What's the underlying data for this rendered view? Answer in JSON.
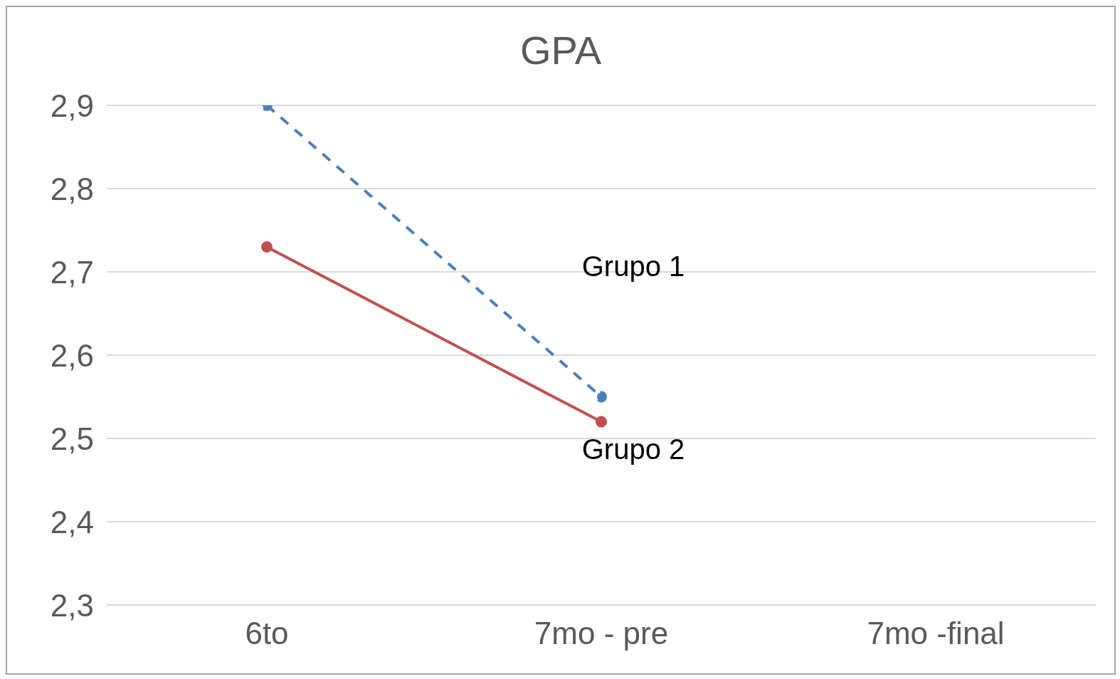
{
  "chart_data": {
    "type": "line",
    "title": "GPA",
    "categories": [
      "6to",
      "7mo - pre",
      "7mo -final"
    ],
    "series": [
      {
        "name": "Grupo 1",
        "color": "#4a7ebb",
        "values": [
          2.9,
          2.55,
          null
        ],
        "line_style": "dashed"
      },
      {
        "name": "Grupo 2",
        "color": "#c0504d",
        "values": [
          2.73,
          2.52,
          null
        ],
        "line_style": "solid"
      }
    ],
    "ylim": [
      2.3,
      2.9
    ],
    "yticks": [
      {
        "value": 2.3,
        "label": "2,3"
      },
      {
        "value": 2.4,
        "label": "2,4"
      },
      {
        "value": 2.5,
        "label": "2,5"
      },
      {
        "value": 2.6,
        "label": "2,6"
      },
      {
        "value": 2.7,
        "label": "2,7"
      },
      {
        "value": 2.8,
        "label": "2,8"
      },
      {
        "value": 2.9,
        "label": "2,9"
      }
    ],
    "grid": "y",
    "legend": false,
    "marker": "circle"
  }
}
